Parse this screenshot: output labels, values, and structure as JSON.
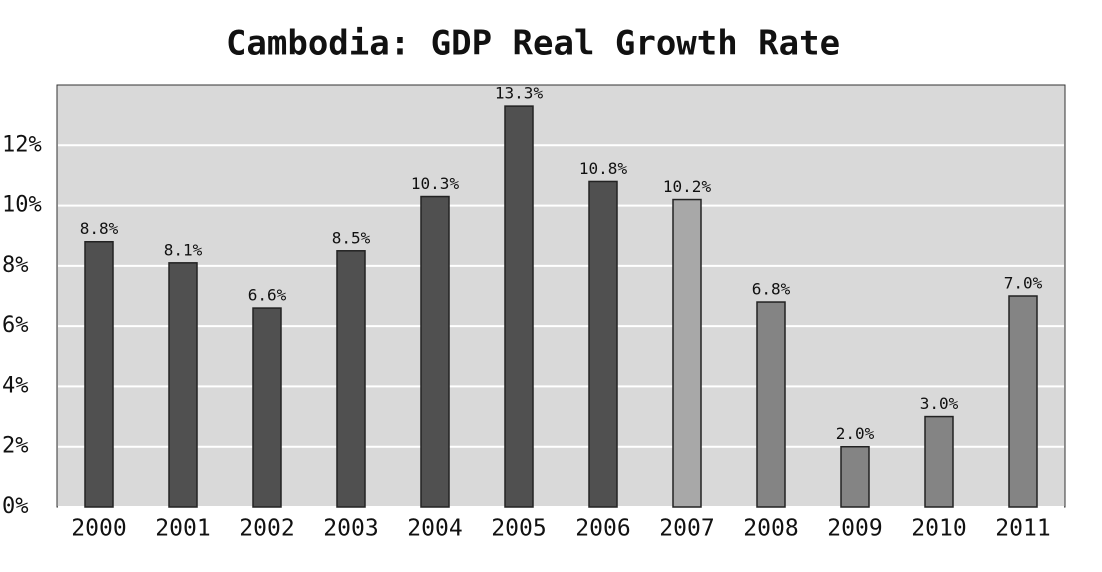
{
  "chart_data": {
    "type": "bar",
    "title": "Cambodia: GDP Real Growth Rate",
    "categories": [
      "2000",
      "2001",
      "2002",
      "2003",
      "2004",
      "2005",
      "2006",
      "2007",
      "2008",
      "2009",
      "2010",
      "2011"
    ],
    "values": [
      8.8,
      8.1,
      6.6,
      8.5,
      10.3,
      13.3,
      10.8,
      10.2,
      6.8,
      2.0,
      3.0,
      7.0
    ],
    "value_labels": [
      "8.8%",
      "8.1%",
      "6.6%",
      "8.5%",
      "10.3%",
      "13.3%",
      "10.8%",
      "10.2%",
      "6.8%",
      "2.0%",
      "3.0%",
      "7.0%"
    ],
    "colors": [
      "#505050",
      "#505050",
      "#505050",
      "#505050",
      "#505050",
      "#505050",
      "#505050",
      "#a8a8a8",
      "#848484",
      "#848484",
      "#848484",
      "#848484"
    ],
    "ylim": [
      0,
      14
    ],
    "yticks": [
      {
        "value": 0,
        "label": "0%"
      },
      {
        "value": 2,
        "label": "2%"
      },
      {
        "value": 4,
        "label": "4%"
      },
      {
        "value": 6,
        "label": "6%"
      },
      {
        "value": 8,
        "label": "8%"
      },
      {
        "value": 10,
        "label": "10%"
      },
      {
        "value": 12,
        "label": "12%"
      }
    ],
    "grid": true
  }
}
